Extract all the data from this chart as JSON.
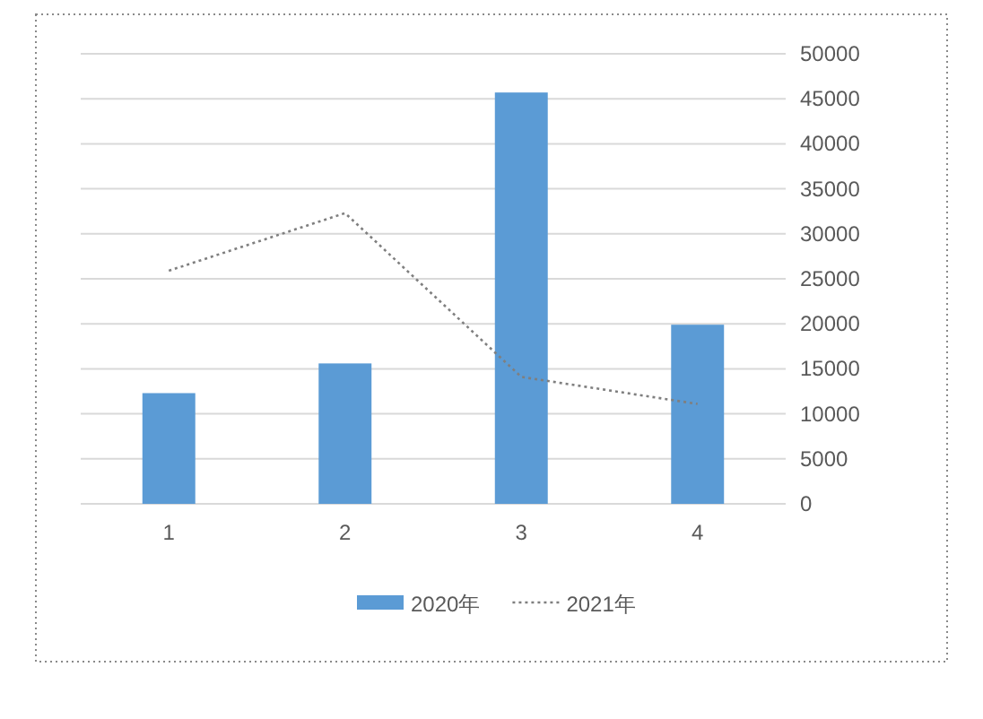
{
  "chart_data": {
    "type": "bar",
    "categories": [
      "1",
      "2",
      "3",
      "4"
    ],
    "series": [
      {
        "name": "2020年",
        "color": "#5b9bd5",
        "values": [
          12300,
          15600,
          45700,
          19900
        ]
      },
      {
        "name": "2021年",
        "type": "line",
        "color": "#7f7f7f",
        "line_style": "dotted",
        "values": [
          25900,
          32300,
          14100,
          11100
        ]
      }
    ],
    "ylim": [
      0,
      50000
    ],
    "yticks": [
      0,
      5000,
      10000,
      15000,
      20000,
      25000,
      30000,
      35000,
      40000,
      45000,
      50000
    ],
    "grid": "y",
    "legend": "bottom"
  }
}
